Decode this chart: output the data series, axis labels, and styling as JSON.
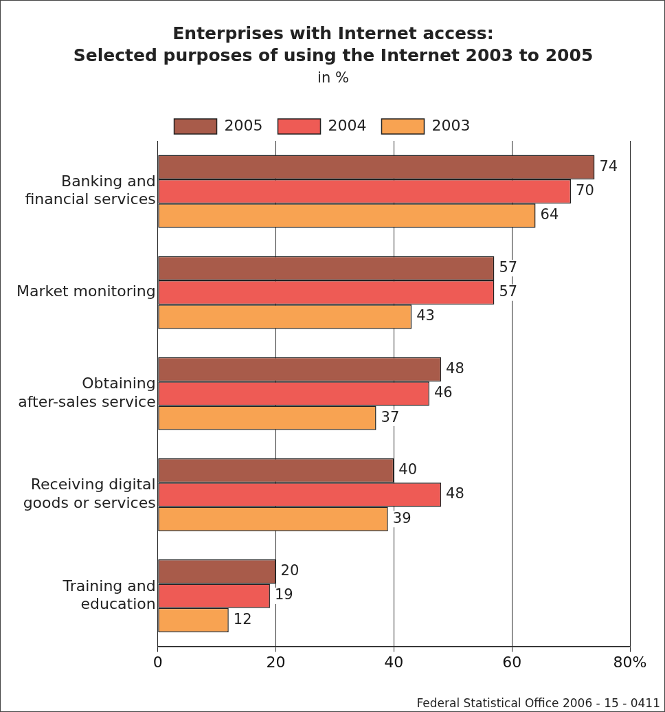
{
  "chart_data": {
    "type": "bar",
    "orientation": "horizontal",
    "title": "Enterprises with Internet access: Selected purposes of using the Internet 2003 to 2005",
    "subtitle": "in %",
    "categories": [
      "Banking and financial services",
      "Market monitoring",
      "Obtaining after-sales service",
      "Receiving digital goods or services",
      "Training and education"
    ],
    "series": [
      {
        "name": "2005",
        "color": "#a85b4a",
        "values": [
          74,
          57,
          48,
          40,
          20
        ]
      },
      {
        "name": "2004",
        "color": "#ee5b55",
        "values": [
          70,
          57,
          46,
          48,
          19
        ]
      },
      {
        "name": "2003",
        "color": "#f8a352",
        "values": [
          64,
          43,
          37,
          39,
          12
        ]
      }
    ],
    "xlim": [
      0,
      80
    ],
    "xticks": [
      0,
      20,
      40,
      60,
      {
        "value": 80,
        "label": "80%"
      }
    ],
    "grid": "x",
    "legend": "top",
    "data_labels": true,
    "annotations": [
      "Federal Statistical Office 2006 - 15 - 0411"
    ]
  }
}
